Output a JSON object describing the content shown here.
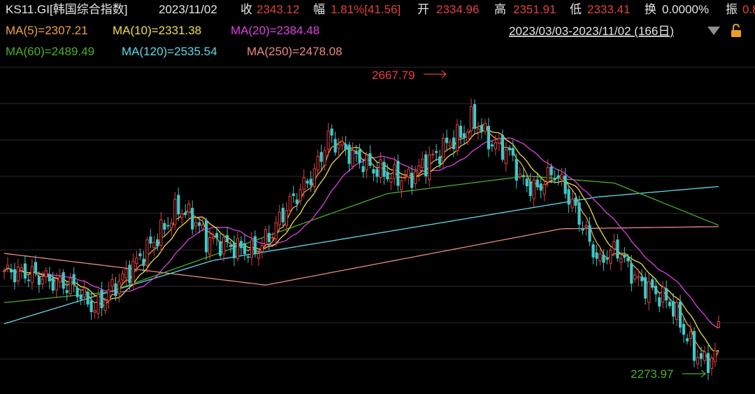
{
  "header": {
    "ticker": "KS11.GI[韩国综合指数]",
    "date": "2023/11/02",
    "close_label": "收",
    "close_value": "2343.12",
    "change_label": "幅",
    "change_value": "1.81%[41.56]",
    "open_label": "开",
    "open_value": "2334.96",
    "high_label": "高",
    "high_value": "2351.91",
    "low_label": "低",
    "low_value": "2333.41",
    "turnover_label": "换",
    "turnover_value": "0.0000%",
    "amplitude_label": "振",
    "amplitude_value": "0.8"
  },
  "ma_legend": [
    {
      "label": "MA(5)=2307.21",
      "color": "#f0a23c"
    },
    {
      "label": "MA(10)=2331.38",
      "color": "#f0e040"
    },
    {
      "label": "MA(20)=2384.48",
      "color": "#e040e0"
    },
    {
      "label": "MA(60)=2489.49",
      "color": "#4caf28"
    },
    {
      "label": "MA(120)=2535.54",
      "color": "#60d8e8"
    },
    {
      "label": "MA(250)=2478.08",
      "color": "#e88a80"
    }
  ],
  "range_label": "2023/03/03-2023/11/02 (166日)",
  "icons": {
    "dropdown": "chevron-down-icon",
    "lock": "lock-icon"
  },
  "colors": {
    "up": "#e04040",
    "down": "#3ec8c8",
    "header_text": "#e6e6e6",
    "header_value": "#e04040",
    "grid": "#2b2b2b",
    "dropdown_icon": "#909090",
    "lock_icon": "#e8a020"
  },
  "annotations": {
    "high_label": "2667.79",
    "low_label": "2273.97"
  },
  "chart_data": {
    "type": "candlestick",
    "x_range": [
      "2023/03/03",
      "2023/11/02"
    ],
    "trading_days": 166,
    "period_high": 2667.79,
    "period_low": 2273.97,
    "last": {
      "open": 2334.96,
      "high": 2351.91,
      "low": 2333.41,
      "close": 2343.12,
      "change": 41.56,
      "change_pct": 1.81
    },
    "moving_averages": [
      {
        "name": "MA(5)",
        "value": 2307.21
      },
      {
        "name": "MA(10)",
        "value": 2331.38
      },
      {
        "name": "MA(20)",
        "value": 2384.48
      },
      {
        "name": "MA(60)",
        "value": 2489.49
      },
      {
        "name": "MA(120)",
        "value": 2535.54
      },
      {
        "name": "MA(250)",
        "value": 2478.08
      }
    ],
    "close_path": [
      [
        0,
        2415
      ],
      [
        8,
        2410
      ],
      [
        14,
        2400
      ],
      [
        20,
        2392
      ],
      [
        26,
        2360
      ],
      [
        30,
        2385
      ],
      [
        35,
        2410
      ],
      [
        40,
        2440
      ],
      [
        45,
        2470
      ],
      [
        50,
        2505
      ],
      [
        55,
        2485
      ],
      [
        58,
        2460
      ],
      [
        62,
        2455
      ],
      [
        67,
        2447
      ],
      [
        72,
        2442
      ],
      [
        77,
        2470
      ],
      [
        81,
        2505
      ],
      [
        85,
        2530
      ],
      [
        89,
        2555
      ],
      [
        93,
        2605
      ],
      [
        97,
        2590
      ],
      [
        101,
        2575
      ],
      [
        106,
        2560
      ],
      [
        111,
        2550
      ],
      [
        116,
        2545
      ],
      [
        120,
        2565
      ],
      [
        124,
        2580
      ],
      [
        128,
        2600
      ],
      [
        132,
        2610
      ],
      [
        134,
        2630
      ],
      [
        136,
        2622
      ],
      [
        140,
        2595
      ],
      [
        143,
        2590
      ],
      [
        146,
        2575
      ],
      [
        148,
        2545
      ],
      [
        151,
        2535
      ],
      [
        153,
        2530
      ],
      [
        155,
        2545
      ],
      [
        158,
        2555
      ],
      [
        160,
        2540
      ],
      [
        163,
        2510
      ],
      [
        166,
        2480
      ],
      [
        168,
        2455
      ],
      [
        171,
        2425
      ],
      [
        173,
        2440
      ],
      [
        176,
        2445
      ],
      [
        179,
        2420
      ],
      [
        182,
        2400
      ],
      [
        185,
        2390
      ],
      [
        188,
        2380
      ],
      [
        191,
        2370
      ],
      [
        193,
        2352
      ],
      [
        195,
        2330
      ],
      [
        198,
        2300
      ],
      [
        201,
        2285
      ],
      [
        203,
        2290
      ],
      [
        204,
        2301
      ],
      [
        205,
        2343
      ]
    ]
  }
}
